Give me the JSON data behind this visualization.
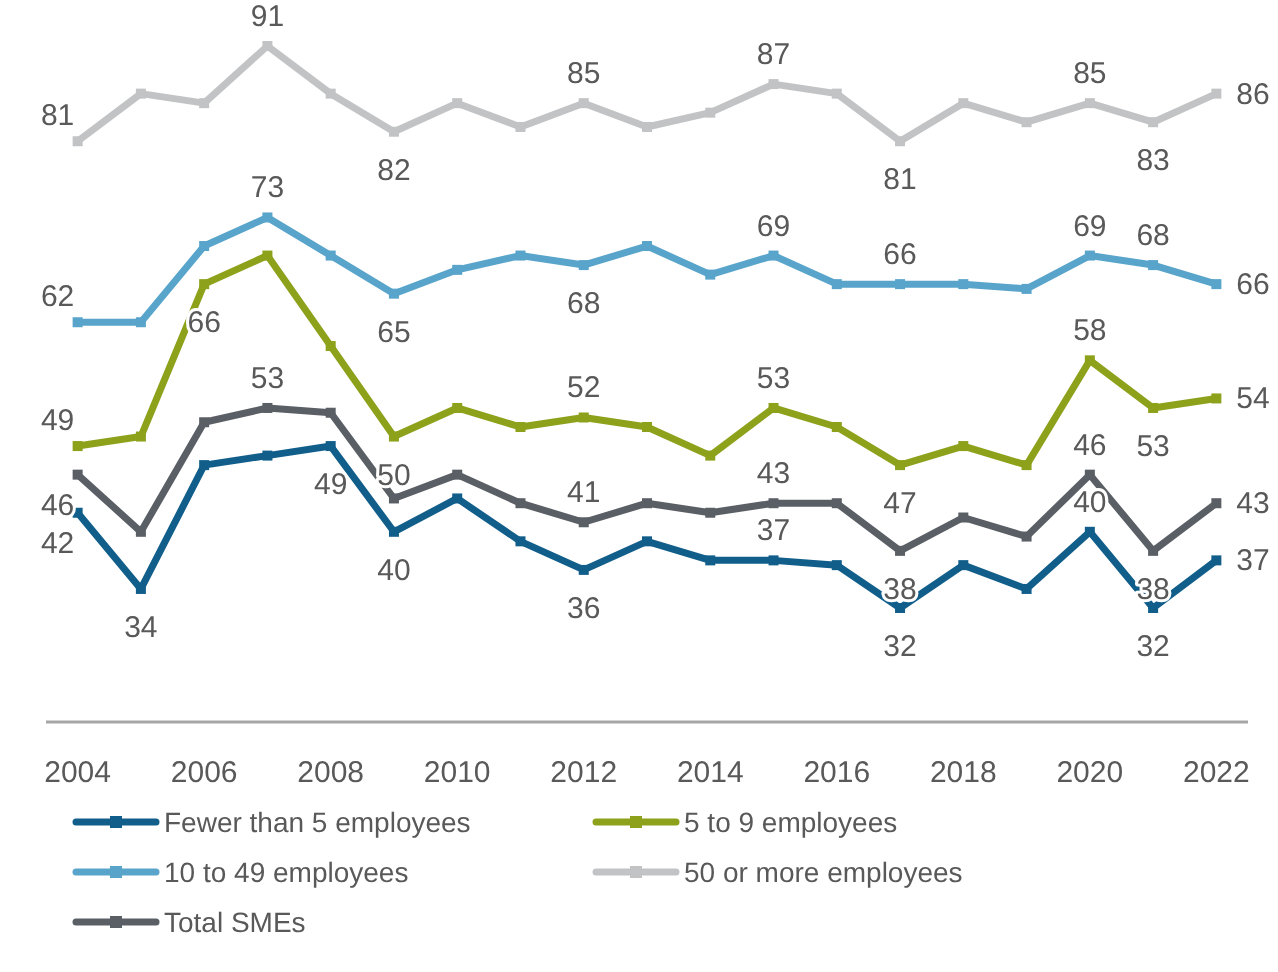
{
  "chart_data": {
    "type": "line",
    "x": [
      2004,
      2005,
      2006,
      2007,
      2008,
      2009,
      2010,
      2011,
      2012,
      2013,
      2014,
      2015,
      2016,
      2017,
      2018,
      2019,
      2020,
      2021,
      2022
    ],
    "xlim": [
      2003.5,
      2022.5
    ],
    "xticks": [
      2004,
      2006,
      2008,
      2010,
      2012,
      2014,
      2016,
      2018,
      2020,
      2022
    ],
    "tick_labels": "x",
    "legend": "bottom",
    "marker": "square",
    "line_style": "solid",
    "series": [
      {
        "name": "Fewer than 5 employees",
        "color": "#115e8b",
        "values": [
          42,
          34,
          47,
          48,
          49,
          40,
          43.5,
          39,
          36,
          39,
          37,
          37,
          36.5,
          32,
          36.5,
          34,
          40,
          32,
          37
        ],
        "value_labels": [
          "42",
          "34",
          null,
          null,
          "49",
          "40",
          null,
          null,
          "36",
          null,
          null,
          "37",
          null,
          "32",
          null,
          null,
          "40",
          "32",
          "37"
        ]
      },
      {
        "name": "5 to 9 employees",
        "color": "#8da11b",
        "values": [
          49,
          50,
          66,
          69,
          59.5,
          50,
          53,
          51,
          52,
          51,
          48,
          53,
          51,
          47,
          49,
          47,
          58,
          53,
          54
        ],
        "value_labels": [
          "49",
          null,
          "66",
          null,
          null,
          "50",
          null,
          null,
          "52",
          null,
          null,
          "53",
          null,
          "47",
          null,
          null,
          "58",
          "53",
          "54"
        ]
      },
      {
        "name": "10 to 49 employees",
        "color": "#58a4cb",
        "values": [
          62,
          62,
          70,
          73,
          69,
          65,
          67.5,
          69,
          68,
          70,
          67,
          69,
          66,
          66,
          66,
          65.5,
          69,
          68,
          66
        ],
        "value_labels": [
          "62",
          null,
          null,
          "73",
          null,
          "65",
          null,
          null,
          "68",
          null,
          null,
          "69",
          null,
          "66",
          null,
          null,
          "69",
          "68",
          "66"
        ]
      },
      {
        "name": "50 or more employees",
        "color": "#c1c3c5",
        "values": [
          81,
          86,
          85,
          91,
          86,
          82,
          85,
          82.5,
          85,
          82.5,
          84,
          87,
          86,
          81,
          85,
          83,
          85,
          83,
          86
        ],
        "value_labels": [
          "81",
          null,
          null,
          "91",
          null,
          "82",
          null,
          null,
          "85",
          null,
          null,
          "87",
          null,
          "81",
          null,
          null,
          "85",
          "83",
          "86"
        ]
      },
      {
        "name": "Total SMEs",
        "color": "#5a5f66",
        "values": [
          46,
          40,
          51.5,
          53,
          52.5,
          43.5,
          46,
          43,
          41,
          43,
          42,
          43,
          43,
          38,
          41.5,
          39.5,
          46,
          38,
          43
        ],
        "value_labels": [
          "46",
          null,
          null,
          "53",
          null,
          null,
          null,
          null,
          "41",
          null,
          null,
          "43",
          null,
          "38",
          null,
          null,
          "46",
          "38",
          "43"
        ]
      }
    ]
  }
}
